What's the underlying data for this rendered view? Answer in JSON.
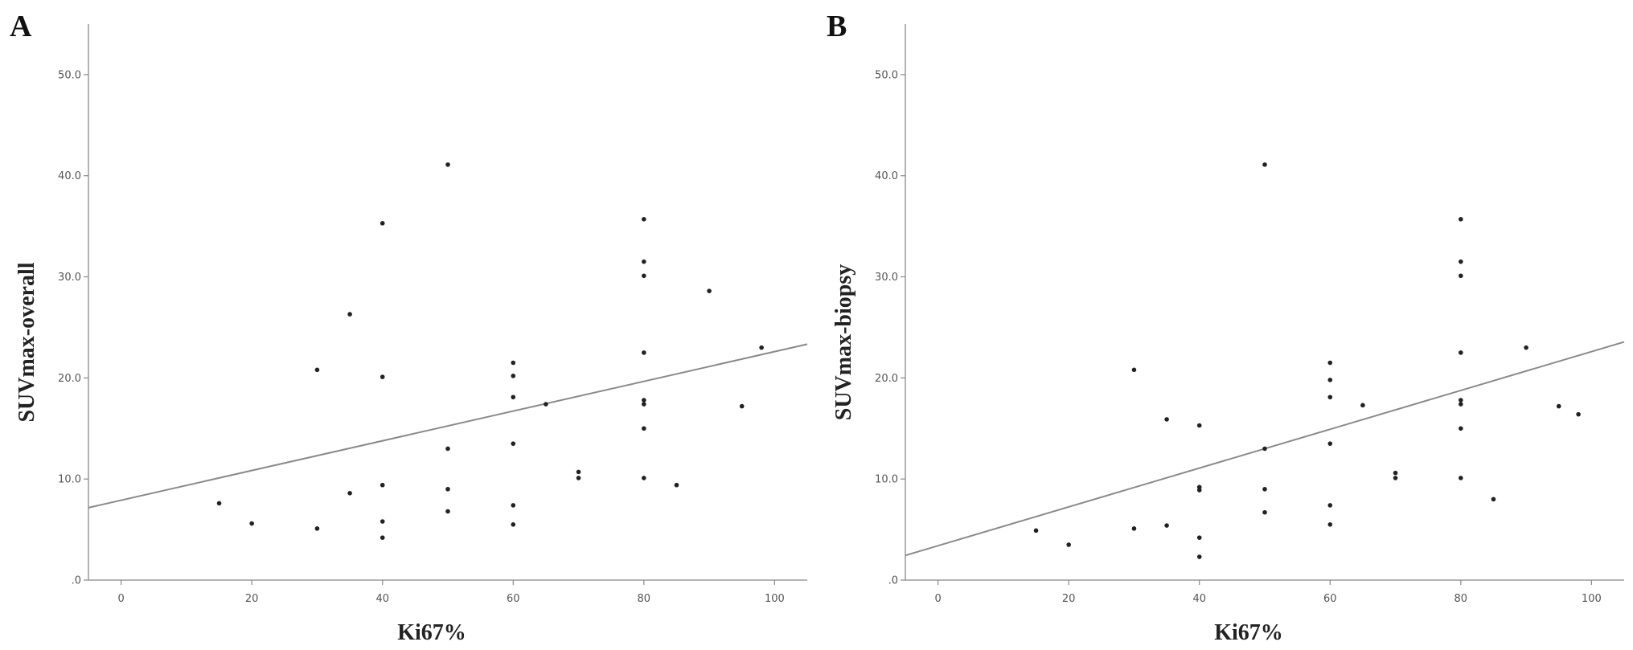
{
  "chart_data": [
    {
      "type": "scatter",
      "panel_label": "A",
      "xlabel": "Ki67%",
      "ylabel": "SUVmax-overall",
      "xlim": [
        -5,
        105
      ],
      "ylim": [
        0,
        55
      ],
      "xticks": [
        0,
        20,
        40,
        60,
        80,
        100
      ],
      "xtick_labels": [
        "0",
        "20",
        "40",
        "60",
        "80",
        "100"
      ],
      "yticks": [
        0,
        10,
        20,
        30,
        40,
        50
      ],
      "ytick_labels": [
        ".0",
        "10.0",
        "20.0",
        "30.0",
        "40.0",
        "50.0"
      ],
      "grid": false,
      "points": [
        [
          15,
          7.6
        ],
        [
          20,
          5.6
        ],
        [
          30,
          5.1
        ],
        [
          30,
          20.8
        ],
        [
          35,
          8.6
        ],
        [
          35,
          26.3
        ],
        [
          40,
          4.2
        ],
        [
          40,
          5.8
        ],
        [
          40,
          9.4
        ],
        [
          40,
          20.1
        ],
        [
          40,
          35.3
        ],
        [
          50,
          6.8
        ],
        [
          50,
          9.0
        ],
        [
          50,
          13.0
        ],
        [
          50,
          41.1
        ],
        [
          60,
          5.5
        ],
        [
          60,
          7.4
        ],
        [
          60,
          13.5
        ],
        [
          60,
          18.1
        ],
        [
          60,
          20.2
        ],
        [
          60,
          21.5
        ],
        [
          65,
          17.4
        ],
        [
          70,
          10.1
        ],
        [
          70,
          10.7
        ],
        [
          80,
          10.1
        ],
        [
          80,
          15.0
        ],
        [
          80,
          17.4
        ],
        [
          80,
          17.8
        ],
        [
          80,
          22.5
        ],
        [
          80,
          30.1
        ],
        [
          80,
          31.5
        ],
        [
          80,
          35.7
        ],
        [
          85,
          9.4
        ],
        [
          90,
          28.6
        ],
        [
          95,
          17.2
        ],
        [
          98,
          23.0
        ]
      ],
      "fit_line": {
        "intercept": 7.9,
        "slope": 0.147
      }
    },
    {
      "type": "scatter",
      "panel_label": "B",
      "xlabel": "Ki67%",
      "ylabel": "SUVmax-biopsy",
      "xlim": [
        -5,
        105
      ],
      "ylim": [
        0,
        55
      ],
      "xticks": [
        0,
        20,
        40,
        60,
        80,
        100
      ],
      "xtick_labels": [
        "0",
        "20",
        "40",
        "60",
        "80",
        "100"
      ],
      "yticks": [
        0,
        10,
        20,
        30,
        40,
        50
      ],
      "ytick_labels": [
        ".0",
        "10.0",
        "20.0",
        "30.0",
        "40.0",
        "50.0"
      ],
      "grid": false,
      "points": [
        [
          15,
          4.9
        ],
        [
          20,
          3.5
        ],
        [
          30,
          5.1
        ],
        [
          30,
          20.8
        ],
        [
          35,
          5.4
        ],
        [
          35,
          15.9
        ],
        [
          40,
          2.3
        ],
        [
          40,
          4.2
        ],
        [
          40,
          8.9
        ],
        [
          40,
          9.2
        ],
        [
          40,
          15.3
        ],
        [
          50,
          6.7
        ],
        [
          50,
          9.0
        ],
        [
          50,
          13.0
        ],
        [
          50,
          41.1
        ],
        [
          60,
          5.5
        ],
        [
          60,
          7.4
        ],
        [
          60,
          13.5
        ],
        [
          60,
          18.1
        ],
        [
          60,
          19.8
        ],
        [
          60,
          21.5
        ],
        [
          65,
          17.3
        ],
        [
          70,
          10.1
        ],
        [
          70,
          10.6
        ],
        [
          80,
          10.1
        ],
        [
          80,
          15.0
        ],
        [
          80,
          17.4
        ],
        [
          80,
          17.8
        ],
        [
          80,
          22.5
        ],
        [
          80,
          30.1
        ],
        [
          80,
          31.5
        ],
        [
          80,
          35.7
        ],
        [
          85,
          8.0
        ],
        [
          90,
          23.0
        ],
        [
          95,
          17.2
        ],
        [
          98,
          16.4
        ]
      ],
      "fit_line": {
        "intercept": 3.4,
        "slope": 0.192
      }
    }
  ]
}
